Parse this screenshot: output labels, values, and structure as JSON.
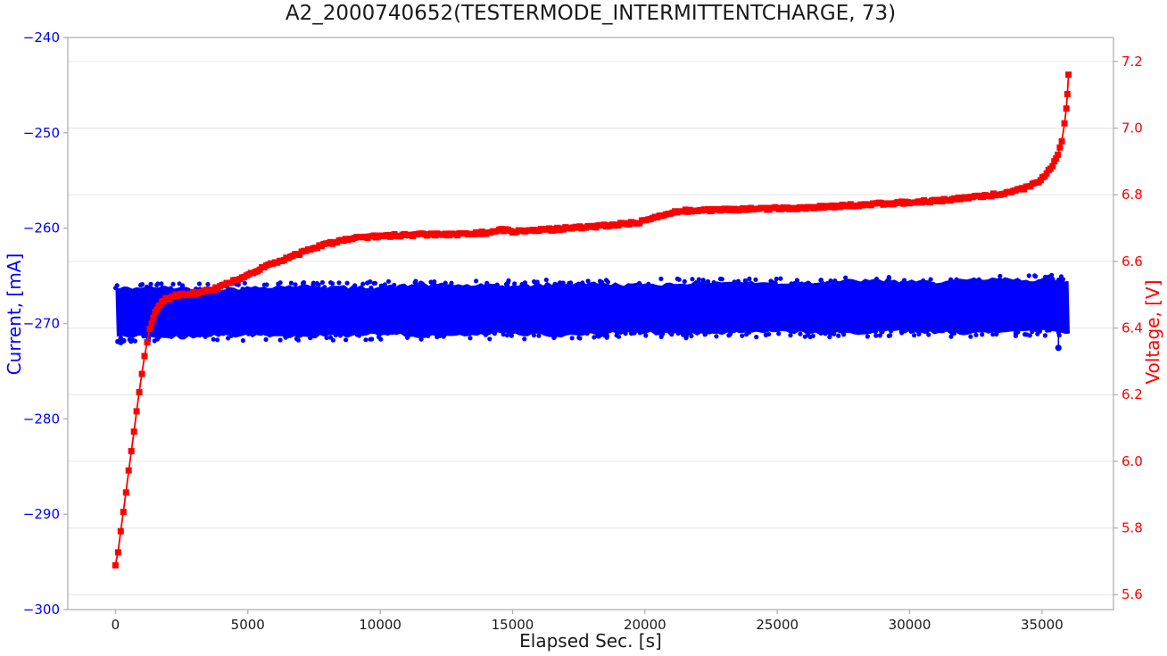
{
  "figure": {
    "title": "A2_2000740652(TESTERMODE_INTERMITTENTCHARGE, 73)",
    "xlabel": "Elapsed Sec. [s]",
    "ylabel_left": "Current, [mA]",
    "ylabel_right": "Voltage, [V]"
  },
  "chart_data": {
    "type": "line",
    "title": "A2_2000740652(TESTERMODE_INTERMITTENTCHARGE, 73)",
    "xlabel": "Elapsed Sec. [s]",
    "grid": "horizontal gridlines at right-axis (voltage) tick positions only",
    "legend": "none",
    "background": "#ffffff",
    "spine_color": "#b0b0b0",
    "grid_color": "#e7e7e7",
    "x_axis": {
      "lim": [
        -1800,
        37700
      ],
      "tick_values": [
        0,
        5000,
        10000,
        15000,
        20000,
        25000,
        30000,
        35000
      ],
      "tick_labels": [
        "0",
        "5000",
        "10000",
        "15000",
        "20000",
        "25000",
        "30000",
        "35000"
      ],
      "color": "#1a1a1a"
    },
    "left_axis": {
      "label": "Current, [mA]",
      "color": "#0000ff",
      "lim": [
        -300,
        -240
      ],
      "tick_values": [
        -240,
        -250,
        -260,
        -270,
        -280,
        -290,
        -300
      ],
      "tick_labels": [
        "−240",
        "−250",
        "−260",
        "−270",
        "−280",
        "−290",
        "−300"
      ]
    },
    "right_axis": {
      "label": "Voltage, [V]",
      "color": "#ff0000",
      "lim": [
        5.555,
        7.272
      ],
      "tick_values": [
        7.2,
        7.0,
        6.8,
        6.6,
        6.4,
        6.2,
        6.0,
        5.8,
        5.6
      ],
      "tick_labels": [
        "7.2",
        "7.0",
        "6.8",
        "6.6",
        "6.4",
        "6.2",
        "6.0",
        "5.8",
        "5.6"
      ]
    },
    "series": [
      {
        "name": "Current",
        "axis": "left",
        "style": "dense-scatter-band",
        "color": "#0000ff",
        "band": {
          "t_start": 0,
          "t_end": 36050,
          "top_start_mA": -266.3,
          "top_end_mA": -265.35,
          "bottom_start_mA": -271.45,
          "bottom_end_mA": -270.85
        },
        "outliers_t_mA": [
          [
            90,
            -271.9
          ],
          [
            200,
            -272.0
          ],
          [
            310,
            -271.8
          ]
        ],
        "end_dip": {
          "t": 35620,
          "from_mA": -270.9,
          "to_mA": -272.55
        }
      },
      {
        "name": "Voltage",
        "axis": "right",
        "style": "line-with-square-markers",
        "color": "#ff0000",
        "keypoints_t_V": [
          [
            0,
            5.69
          ],
          [
            100,
            5.73
          ],
          [
            200,
            5.79
          ],
          [
            300,
            5.85
          ],
          [
            400,
            5.91
          ],
          [
            500,
            5.97
          ],
          [
            600,
            6.03
          ],
          [
            700,
            6.09
          ],
          [
            800,
            6.15
          ],
          [
            900,
            6.21
          ],
          [
            1000,
            6.265
          ],
          [
            1100,
            6.315
          ],
          [
            1200,
            6.36
          ],
          [
            1300,
            6.4
          ],
          [
            1500,
            6.45
          ],
          [
            1700,
            6.472
          ],
          [
            1900,
            6.487
          ],
          [
            2200,
            6.496
          ],
          [
            2700,
            6.502
          ],
          [
            3200,
            6.507
          ],
          [
            3700,
            6.516
          ],
          [
            4200,
            6.532
          ],
          [
            4700,
            6.55
          ],
          [
            5200,
            6.567
          ],
          [
            5700,
            6.586
          ],
          [
            6200,
            6.601
          ],
          [
            6700,
            6.616
          ],
          [
            7200,
            6.631
          ],
          [
            7700,
            6.645
          ],
          [
            8200,
            6.656
          ],
          [
            8700,
            6.665
          ],
          [
            9200,
            6.671
          ],
          [
            10000,
            6.676
          ],
          [
            11000,
            6.679
          ],
          [
            12000,
            6.681
          ],
          [
            13000,
            6.682
          ],
          [
            14000,
            6.686
          ],
          [
            14500,
            6.696
          ],
          [
            15000,
            6.69
          ],
          [
            16000,
            6.693
          ],
          [
            17000,
            6.699
          ],
          [
            18000,
            6.704
          ],
          [
            19000,
            6.711
          ],
          [
            19800,
            6.718
          ],
          [
            20300,
            6.731
          ],
          [
            20800,
            6.743
          ],
          [
            21300,
            6.751
          ],
          [
            22000,
            6.753
          ],
          [
            23000,
            6.755
          ],
          [
            24000,
            6.757
          ],
          [
            25000,
            6.759
          ],
          [
            26000,
            6.761
          ],
          [
            27000,
            6.765
          ],
          [
            28000,
            6.769
          ],
          [
            29000,
            6.773
          ],
          [
            30000,
            6.777
          ],
          [
            31000,
            6.782
          ],
          [
            32000,
            6.789
          ],
          [
            33000,
            6.798
          ],
          [
            33500,
            6.803
          ],
          [
            34000,
            6.812
          ],
          [
            34400,
            6.822
          ],
          [
            34800,
            6.836
          ],
          [
            35100,
            6.856
          ],
          [
            35400,
            6.886
          ],
          [
            35600,
            6.921
          ],
          [
            35750,
            6.962
          ],
          [
            35850,
            7.012
          ],
          [
            35920,
            7.062
          ],
          [
            35960,
            7.105
          ],
          [
            36000,
            7.16
          ]
        ]
      }
    ]
  }
}
